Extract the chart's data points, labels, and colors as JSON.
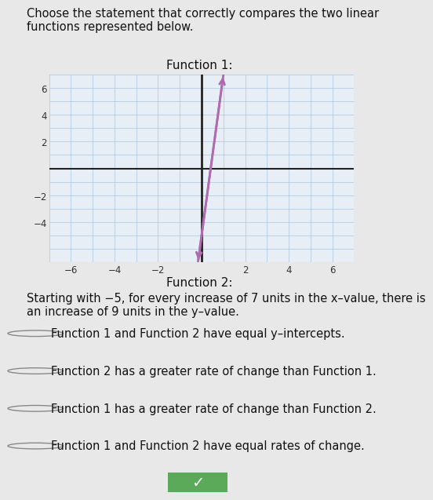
{
  "title_question": "Choose the statement that correctly compares the two linear\nfunctions represented below.",
  "graph_title": "Function 1:",
  "func2_label": "Function 2:",
  "func2_description": "Starting with −5, for every increase of 7 units in the x–value, there is\nan increase of 9 units in the y–value.",
  "line_x": [
    0.5,
    1.0
  ],
  "line_y": [
    -6.0,
    7.0
  ],
  "line_color": "#b06ab0",
  "line_width": 2.0,
  "xlim": [
    -7,
    7
  ],
  "ylim": [
    -7,
    7
  ],
  "xticks": [
    -6,
    -4,
    -2,
    2,
    4,
    6
  ],
  "yticks": [
    -4,
    -2,
    2,
    4,
    6
  ],
  "grid_color": "#aac4e0",
  "axis_color": "#222222",
  "bg_color": "#e8eef5",
  "options": [
    "Function 1 and Function 2 have equal y–intercepts.",
    "Function 2 has a greater rate of change than Function 1.",
    "Function 1 has a greater rate of change than Function 2.",
    "Function 1 and Function 2 have equal rates of change."
  ],
  "check_icon_color": "#4a9a4a",
  "page_bg": "#e8e8e8",
  "font_size_question": 10.5,
  "font_size_options": 10.5,
  "font_size_func2": 10.5,
  "font_size_graph_title": 11.0,
  "tick_fontsize": 8.5
}
